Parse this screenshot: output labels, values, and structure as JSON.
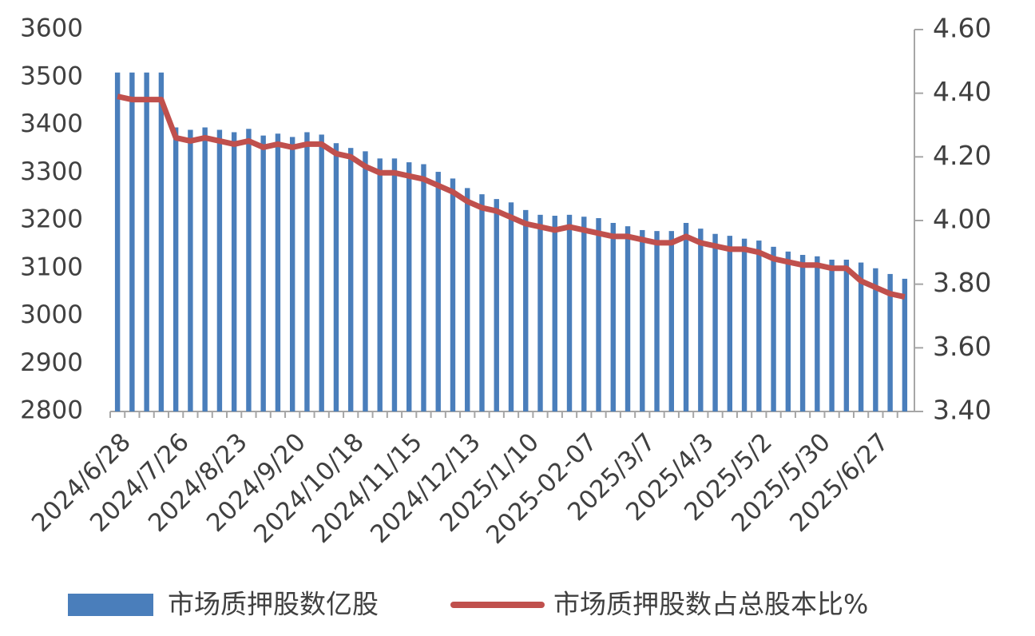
{
  "chart_data": {
    "type": "bar-line",
    "categories": [
      "2024/6/28",
      null,
      null,
      null,
      "2024/7/26",
      null,
      null,
      null,
      "2024/8/23",
      null,
      null,
      null,
      "2024/9/20",
      null,
      null,
      null,
      "2024/10/18",
      null,
      null,
      null,
      "2024/11/15",
      null,
      null,
      null,
      "2024/12/13",
      null,
      null,
      null,
      "2025/1/10",
      null,
      null,
      null,
      "2025-02-07",
      null,
      null,
      null,
      "2025/3/7",
      null,
      null,
      null,
      "2025/4/3",
      null,
      null,
      null,
      "2025/5/2",
      null,
      null,
      null,
      "2025/5/30",
      null,
      null,
      null,
      "2025/6/27",
      null,
      null
    ],
    "series": [
      {
        "name": "市场质押股数亿股",
        "type": "bar",
        "color": "#4a7ebb",
        "values": [
          3510,
          3510,
          3510,
          3510,
          3395,
          3390,
          3395,
          3390,
          3385,
          3392,
          3378,
          3382,
          3375,
          3385,
          3380,
          3362,
          3352,
          3345,
          3330,
          3330,
          3322,
          3318,
          3302,
          3288,
          3268,
          3255,
          3245,
          3238,
          3222,
          3212,
          3210,
          3212,
          3208,
          3205,
          3195,
          3188,
          3180,
          3178,
          3178,
          3195,
          3183,
          3172,
          3168,
          3162,
          3158,
          3145,
          3135,
          3128,
          3125,
          3118,
          3118,
          3112,
          3100,
          3088,
          3078
        ]
      },
      {
        "name": "市场质押股数占总股本比%",
        "type": "line",
        "axis": "y2",
        "color": "#c0504d",
        "values": [
          4.39,
          4.38,
          4.38,
          4.38,
          4.26,
          4.25,
          4.26,
          4.25,
          4.24,
          4.25,
          4.23,
          4.24,
          4.23,
          4.24,
          4.24,
          4.21,
          4.2,
          4.17,
          4.15,
          4.15,
          4.14,
          4.13,
          4.11,
          4.09,
          4.06,
          4.04,
          4.03,
          4.01,
          3.99,
          3.98,
          3.97,
          3.98,
          3.97,
          3.96,
          3.95,
          3.95,
          3.94,
          3.93,
          3.93,
          3.95,
          3.93,
          3.92,
          3.91,
          3.91,
          3.9,
          3.88,
          3.87,
          3.86,
          3.86,
          3.85,
          3.85,
          3.81,
          3.79,
          3.77,
          3.76
        ]
      }
    ],
    "ylim": [
      2800,
      3600
    ],
    "yticks": [
      2800,
      2900,
      3000,
      3100,
      3200,
      3300,
      3400,
      3500,
      3600
    ],
    "y2lim": [
      3.4,
      4.6
    ],
    "y2ticks": [
      {
        "value": 3.4,
        "label": "3.40"
      },
      {
        "value": 3.6,
        "label": "3.60"
      },
      {
        "value": 3.8,
        "label": "3.80"
      },
      {
        "value": 4.0,
        "label": "4.00"
      },
      {
        "value": 4.2,
        "label": "4.20"
      },
      {
        "value": 4.4,
        "label": "4.40"
      },
      {
        "value": 4.6,
        "label": "4.60"
      }
    ],
    "legend": "bottom",
    "grid": false
  }
}
